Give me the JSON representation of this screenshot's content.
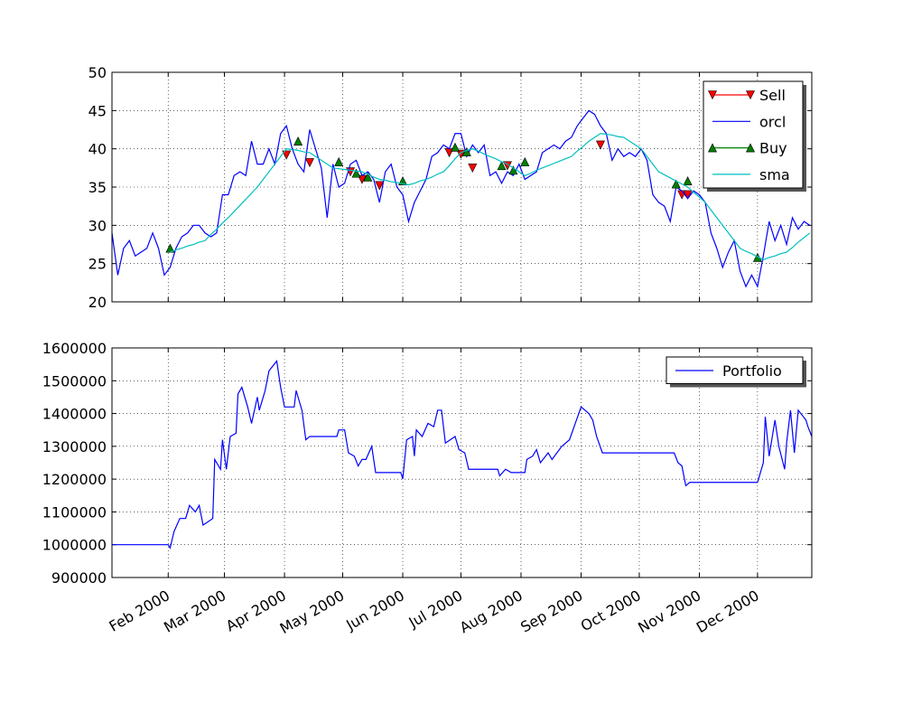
{
  "chart_data": [
    {
      "type": "line",
      "x": [
        3,
        6,
        9,
        12,
        15,
        18,
        21,
        24,
        27,
        30,
        33,
        36,
        39,
        42,
        45,
        48,
        51,
        54,
        57,
        60,
        63,
        66,
        69,
        72,
        75,
        78,
        81,
        84,
        87,
        90,
        93,
        96,
        99,
        102,
        105,
        108,
        111,
        114,
        117,
        120,
        123,
        126,
        129,
        132,
        135,
        138,
        141,
        144,
        147,
        150,
        153,
        156,
        159,
        162,
        165,
        168,
        171,
        174,
        177,
        180,
        183,
        186,
        189,
        192,
        195,
        198,
        201,
        204,
        207,
        210,
        213,
        216,
        219,
        222,
        225,
        228,
        231,
        234,
        237,
        240,
        243,
        246,
        249,
        252,
        255,
        258,
        261,
        264,
        267,
        270,
        273,
        276,
        279,
        282,
        285,
        288,
        291,
        294,
        297,
        300,
        303,
        306,
        309,
        312,
        315,
        318,
        321,
        324,
        327,
        330,
        333,
        336,
        339,
        342,
        345,
        348,
        351,
        354,
        357,
        360,
        363
      ],
      "series": [
        {
          "name": "Sell",
          "color": "#ff0000",
          "marker": "v",
          "x": [
            93,
            105,
            126,
            132,
            141,
            177,
            183,
            189,
            207,
            255,
            297,
            300
          ],
          "values": [
            39.2,
            38.2,
            37,
            36,
            35.2,
            39.5,
            39.3,
            37.5,
            37.8,
            40.5,
            34,
            34
          ]
        },
        {
          "name": "orcl",
          "color": "#0000ff",
          "values": [
            29,
            23.5,
            27,
            28,
            26,
            26.5,
            27,
            29,
            27,
            23.5,
            24.5,
            27,
            28.5,
            29,
            30,
            30,
            29,
            28.5,
            29,
            34,
            34,
            36.5,
            37,
            36.5,
            41,
            38,
            38,
            40,
            38,
            42,
            43,
            40,
            38,
            37,
            42.5,
            40,
            37.5,
            31,
            38,
            35,
            35.5,
            38,
            38.5,
            36.5,
            37,
            36,
            33,
            37,
            38,
            35,
            34,
            30.5,
            33,
            34.5,
            36,
            39,
            39.5,
            40.5,
            40,
            42,
            42,
            39,
            40.5,
            39.5,
            40.5,
            36.5,
            37,
            35.5,
            37,
            36.5,
            38,
            36,
            36.5,
            37,
            39.5,
            40,
            40.5,
            40,
            41,
            41.5,
            43,
            44,
            45,
            44.5,
            43,
            42,
            38.5,
            40,
            39,
            39.5,
            39,
            40,
            38.5,
            34,
            33,
            32.5,
            30.5,
            35,
            34.5,
            33.5,
            34.5,
            34,
            33,
            29,
            27,
            24.5,
            26.5,
            28,
            24,
            22,
            23.5,
            22,
            26,
            30.5,
            28,
            30,
            27.5,
            31,
            29.5,
            30.5,
            30
          ]
        },
        {
          "name": "Buy",
          "color": "#008000",
          "marker": "^",
          "x": [
            33,
            99,
            120,
            129,
            135,
            153,
            180,
            186,
            204,
            210,
            216,
            294,
            300,
            336
          ],
          "values": [
            27,
            41,
            38.3,
            36.8,
            36.3,
            35.8,
            40.2,
            39.6,
            37.8,
            37.2,
            38.3,
            35.4,
            35.8,
            25.8
          ]
        },
        {
          "name": "sma",
          "color": "#00bfbf",
          "values": [
            null,
            null,
            null,
            null,
            null,
            null,
            null,
            null,
            null,
            null,
            26.5,
            26.8,
            27,
            27.3,
            27.5,
            27.8,
            28,
            28.8,
            29.5,
            30.3,
            31,
            31.8,
            32.6,
            33.4,
            34.2,
            35,
            36,
            37,
            38,
            39,
            40,
            39.9,
            39.8,
            39.6,
            39.5,
            39,
            38.5,
            38,
            37.5,
            37.4,
            37.3,
            37.2,
            37.1,
            37,
            36.7,
            36.3,
            36,
            35.9,
            35.7,
            35.6,
            35.4,
            35.3,
            35.5,
            35.8,
            36,
            36.3,
            36.7,
            37,
            37.8,
            38.7,
            39.5,
            39.8,
            40,
            39.7,
            39.3,
            39,
            38.7,
            38.3,
            38,
            37.5,
            37,
            36.5,
            36.8,
            37.2,
            37.5,
            37.8,
            38.1,
            38.4,
            38.7,
            39,
            39.7,
            40.3,
            41,
            41.5,
            42,
            41.9,
            41.8,
            41.6,
            41.5,
            41,
            40.5,
            40,
            39,
            38,
            37,
            36.6,
            36.2,
            35.8,
            35.4,
            35,
            34.3,
            33.7,
            33,
            32,
            31,
            30,
            29,
            28,
            27,
            26.6,
            26.3,
            25.9,
            25.5,
            25.8,
            26,
            26.3,
            26.5,
            27.1,
            27.8,
            28.4,
            29
          ]
        }
      ],
      "xlim": [
        3,
        364
      ],
      "xticks": [
        32,
        61,
        92,
        122,
        153,
        183,
        214,
        245,
        275,
        306,
        336
      ],
      "ylim": [
        20,
        50
      ],
      "yticks": [
        20,
        25,
        30,
        35,
        40,
        45,
        50
      ],
      "grid": true,
      "legend": "upper right"
    },
    {
      "type": "line",
      "series": [
        {
          "name": "Portfolio",
          "color": "#0000ff",
          "x": [
            3,
            32,
            33,
            35,
            38,
            41,
            43,
            46,
            48,
            50,
            55,
            56,
            59,
            60,
            62,
            64,
            67,
            68,
            70,
            73,
            75,
            78,
            79,
            82,
            84,
            88,
            90,
            92,
            97,
            98,
            101,
            103,
            105,
            119,
            120,
            123,
            125,
            128,
            130,
            132,
            134,
            137,
            139,
            152,
            153,
            155,
            158,
            159,
            160,
            163,
            166,
            169,
            171,
            173,
            175,
            180,
            182,
            185,
            187,
            202,
            203,
            206,
            209,
            216,
            217,
            220,
            222,
            224,
            228,
            230,
            235,
            239,
            242,
            245,
            249,
            251,
            253,
            256,
            293,
            295,
            297,
            299,
            301,
            336,
            339,
            340,
            342,
            345,
            347,
            350,
            351,
            353,
            355,
            357,
            361,
            362,
            364
          ],
          "values": [
            1000000,
            1000000,
            990000,
            1040000,
            1080000,
            1080000,
            1120000,
            1100000,
            1120000,
            1060000,
            1080000,
            1260000,
            1230000,
            1320000,
            1230000,
            1330000,
            1340000,
            1460000,
            1480000,
            1420000,
            1370000,
            1450000,
            1410000,
            1470000,
            1530000,
            1560000,
            1480000,
            1420000,
            1420000,
            1470000,
            1410000,
            1320000,
            1330000,
            1330000,
            1350000,
            1350000,
            1280000,
            1270000,
            1240000,
            1260000,
            1260000,
            1300000,
            1220000,
            1220000,
            1200000,
            1320000,
            1330000,
            1270000,
            1350000,
            1330000,
            1370000,
            1360000,
            1410000,
            1410000,
            1310000,
            1330000,
            1290000,
            1280000,
            1230000,
            1230000,
            1210000,
            1230000,
            1220000,
            1220000,
            1260000,
            1270000,
            1290000,
            1250000,
            1280000,
            1260000,
            1300000,
            1320000,
            1370000,
            1420000,
            1400000,
            1380000,
            1330000,
            1280000,
            1280000,
            1250000,
            1240000,
            1180000,
            1190000,
            1190000,
            1250000,
            1390000,
            1270000,
            1380000,
            1300000,
            1230000,
            1310000,
            1410000,
            1280000,
            1410000,
            1380000,
            1360000,
            1330000
          ]
        }
      ],
      "xlim": [
        3,
        364
      ],
      "xticks": [
        {
          "value": 32,
          "label": "Feb 2000"
        },
        {
          "value": 61,
          "label": "Mar 2000"
        },
        {
          "value": 92,
          "label": "Apr 2000"
        },
        {
          "value": 122,
          "label": "May 2000"
        },
        {
          "value": 153,
          "label": "Jun 2000"
        },
        {
          "value": 183,
          "label": "Jul 2000"
        },
        {
          "value": 214,
          "label": "Aug 2000"
        },
        {
          "value": 245,
          "label": "Sep 2000"
        },
        {
          "value": 275,
          "label": "Oct 2000"
        },
        {
          "value": 306,
          "label": "Nov 2000"
        },
        {
          "value": 336,
          "label": "Dec 2000"
        }
      ],
      "ylim": [
        900000,
        1600000
      ],
      "yticks": [
        900000,
        1000000,
        1100000,
        1200000,
        1300000,
        1400000,
        1500000,
        1600000
      ],
      "grid": true,
      "legend": "upper right"
    }
  ]
}
